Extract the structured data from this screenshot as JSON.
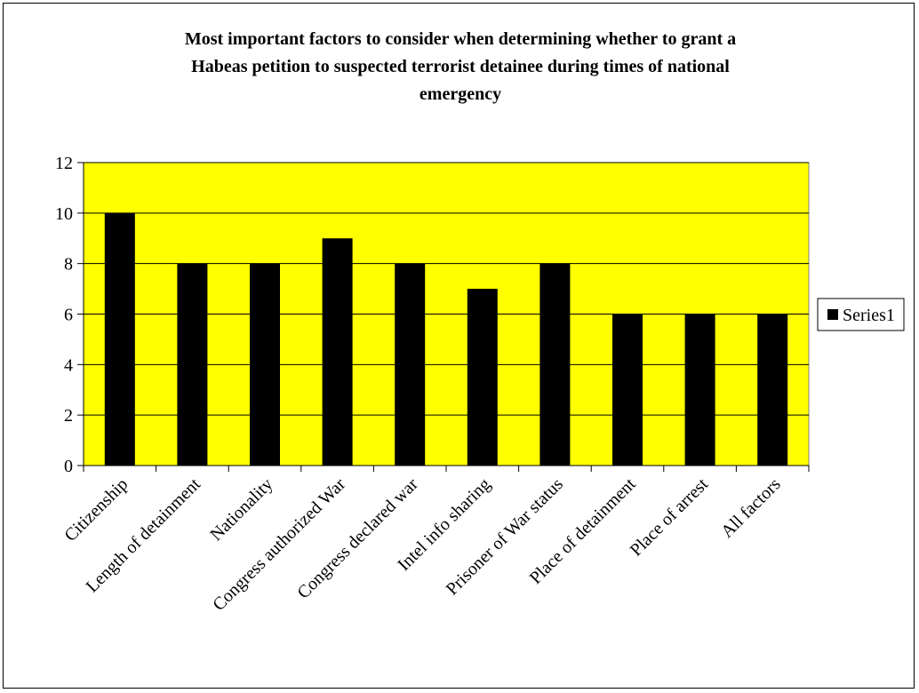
{
  "chart_data": {
    "type": "bar",
    "title_lines": [
      "Most important factors to consider when determining whether to  grant a",
      "Habeas petition to suspected terrorist detainee during times of national",
      "emergency"
    ],
    "categories": [
      "Citizenship",
      "Length of detainment",
      "Nationality",
      "Congress authorized War",
      "Congress declared war",
      "Intel info sharing",
      "Prisoner of War status",
      "Place of detainment",
      "Place of arrest",
      "All factors"
    ],
    "series": [
      {
        "name": "Series1",
        "values": [
          10,
          8,
          8,
          9,
          8,
          7,
          8,
          6,
          6,
          6
        ],
        "color": "#000000"
      }
    ],
    "ylim": [
      0,
      12
    ],
    "yticks": [
      0,
      2,
      4,
      6,
      8,
      10,
      12
    ],
    "grid": true,
    "plot_background": "#ffff00",
    "legend_position": "right"
  }
}
